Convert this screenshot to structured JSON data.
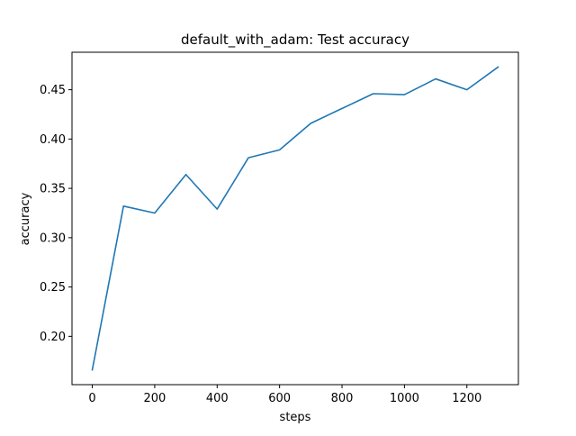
{
  "chart_data": {
    "type": "line",
    "title": "default_with_adam: Test accuracy",
    "xlabel": "steps",
    "ylabel": "accuracy",
    "x": [
      0,
      100,
      200,
      300,
      400,
      500,
      600,
      700,
      800,
      900,
      1000,
      1100,
      1200,
      1300
    ],
    "series": [
      {
        "values": [
          0.166,
          0.332,
          0.325,
          0.364,
          0.329,
          0.381,
          0.389,
          0.416,
          0.431,
          0.446,
          0.445,
          0.461,
          0.45,
          0.473
        ]
      }
    ],
    "xlim": [
      -65,
      1365
    ],
    "ylim": [
      0.151,
      0.488
    ],
    "xticks": [
      0,
      200,
      400,
      600,
      800,
      1000,
      1200
    ],
    "xtick_labels": [
      "0",
      "200",
      "400",
      "600",
      "800",
      "1000",
      "1200"
    ],
    "yticks": [
      0.2,
      0.25,
      0.3,
      0.35,
      0.4,
      0.45
    ],
    "ytick_labels": [
      "0.20",
      "0.25",
      "0.30",
      "0.35",
      "0.40",
      "0.45"
    ],
    "grid": false,
    "line_color": "#1f77b4"
  }
}
